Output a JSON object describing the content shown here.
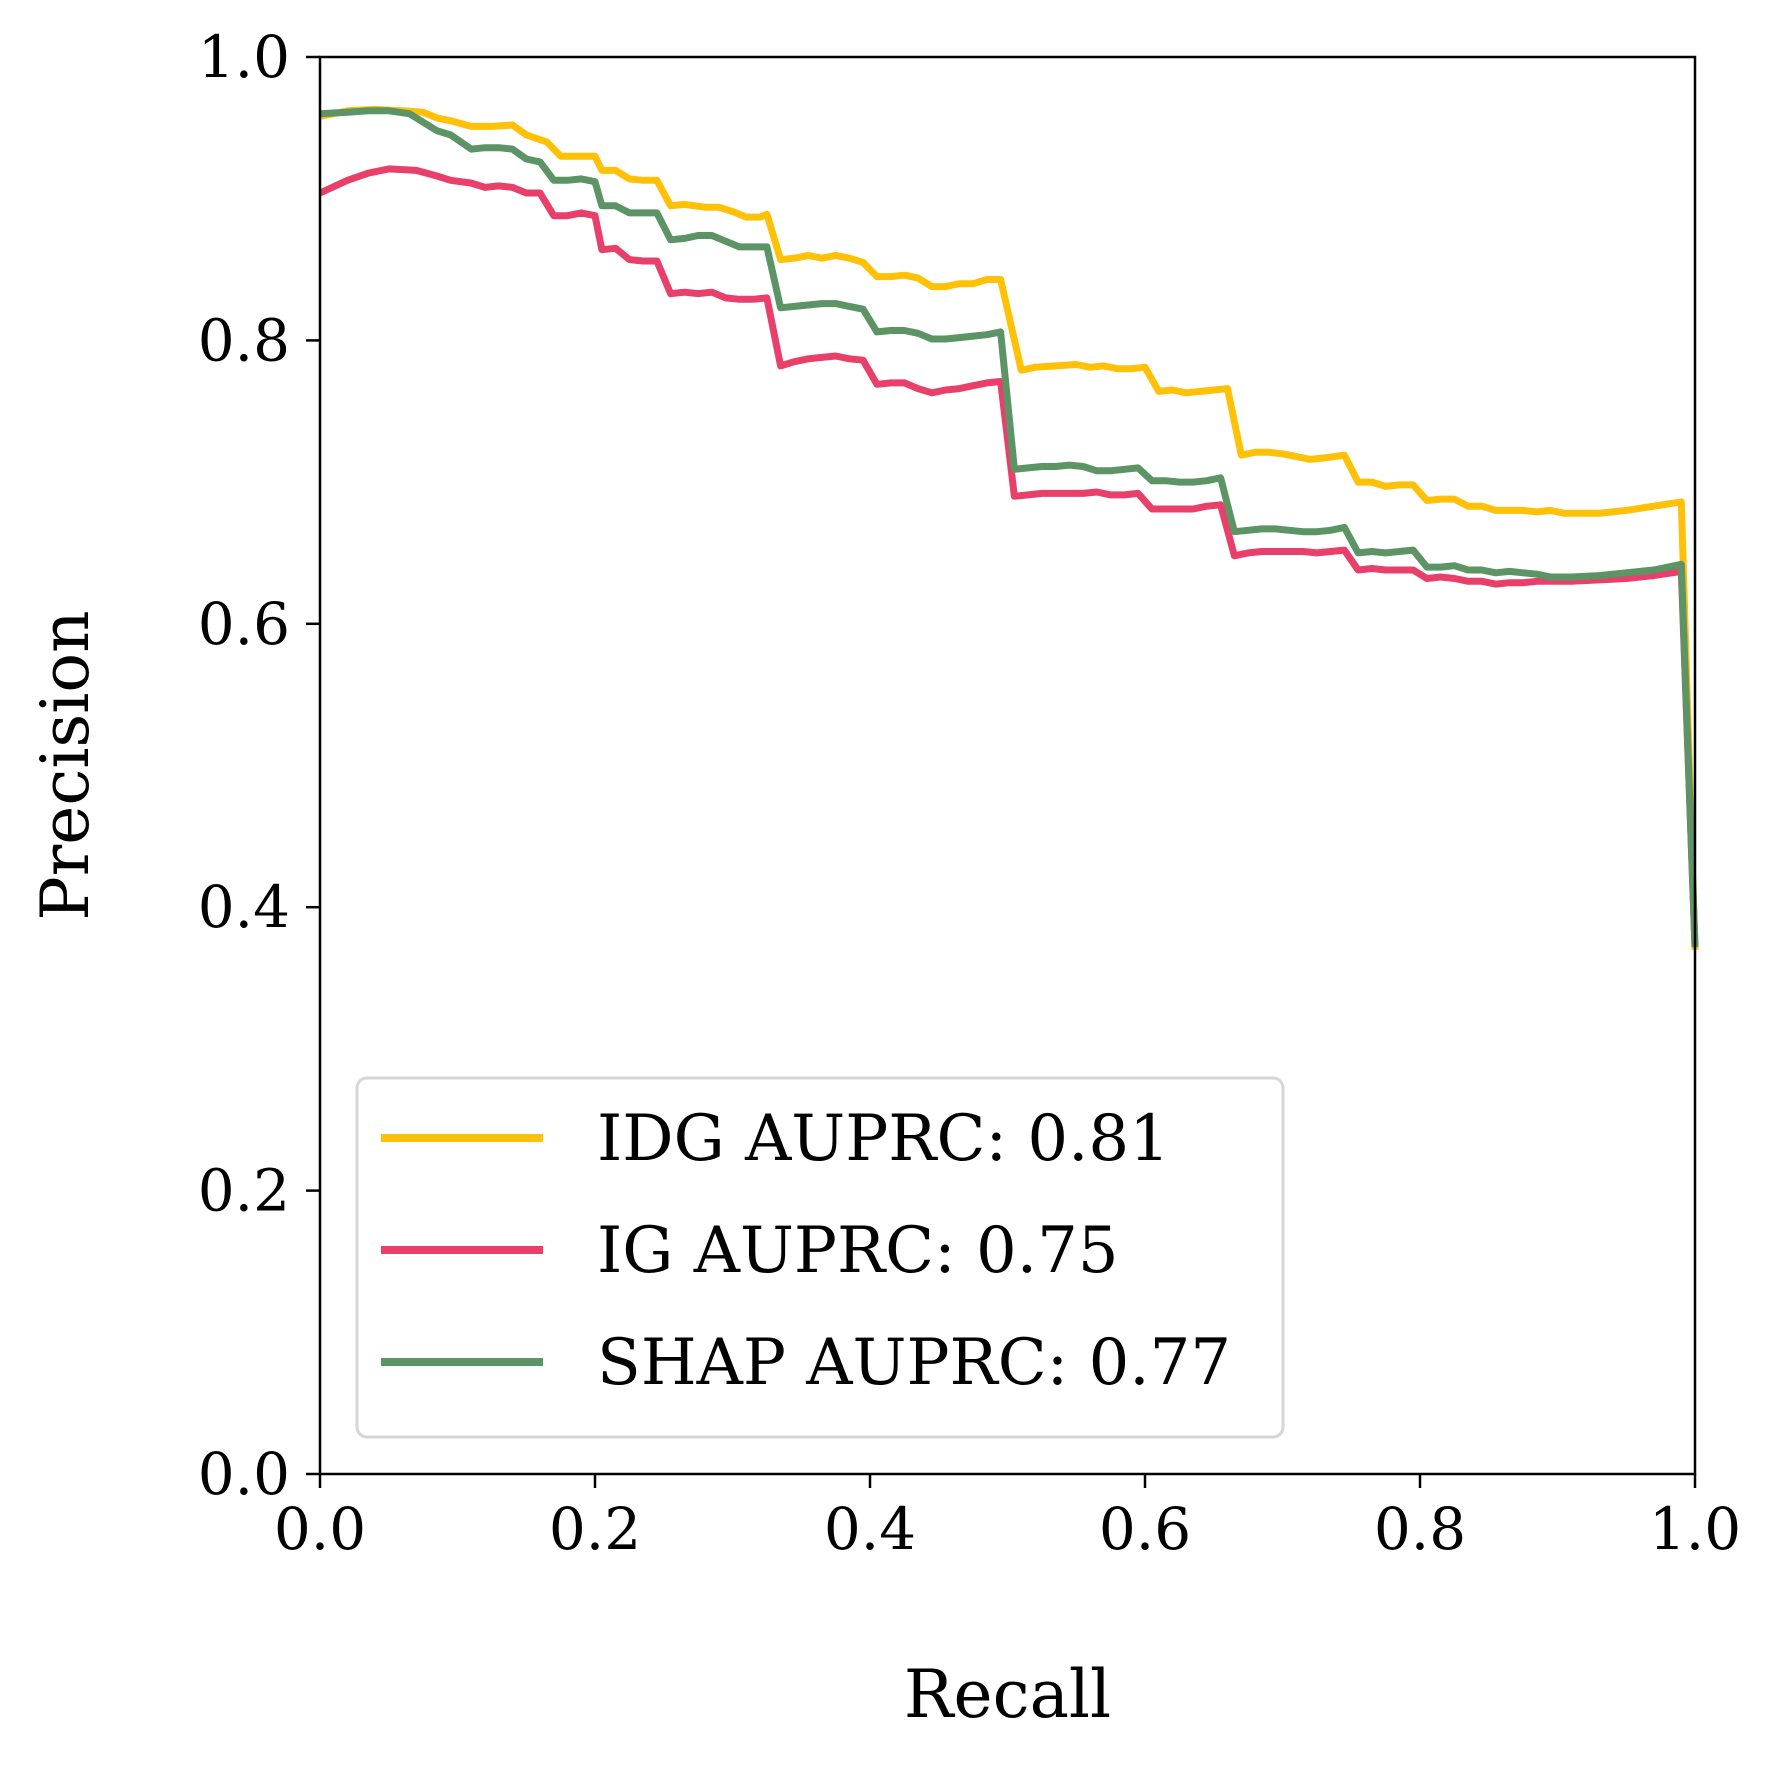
{
  "chart_data": {
    "type": "line",
    "xlabel": "Recall",
    "ylabel": "Precision",
    "xlim": [
      0.0,
      1.0
    ],
    "ylim": [
      0.0,
      1.0
    ],
    "x_ticks": [
      "0.0",
      "0.2",
      "0.4",
      "0.6",
      "0.8",
      "1.0"
    ],
    "y_ticks": [
      "0.0",
      "0.2",
      "0.4",
      "0.6",
      "0.8",
      "1.0"
    ],
    "grid": false,
    "legend_position": "bottom-left",
    "series": [
      {
        "name": "IDG AUPRC: 0.81",
        "color": "#FFC107",
        "points": [
          [
            0.0,
            0.958
          ],
          [
            0.02,
            0.962
          ],
          [
            0.04,
            0.963
          ],
          [
            0.06,
            0.962
          ],
          [
            0.075,
            0.961
          ],
          [
            0.085,
            0.957
          ],
          [
            0.095,
            0.955
          ],
          [
            0.11,
            0.951
          ],
          [
            0.125,
            0.951
          ],
          [
            0.14,
            0.952
          ],
          [
            0.15,
            0.945
          ],
          [
            0.165,
            0.94
          ],
          [
            0.175,
            0.93
          ],
          [
            0.19,
            0.93
          ],
          [
            0.2,
            0.93
          ],
          [
            0.205,
            0.92
          ],
          [
            0.215,
            0.92
          ],
          [
            0.225,
            0.914
          ],
          [
            0.235,
            0.913
          ],
          [
            0.245,
            0.913
          ],
          [
            0.255,
            0.895
          ],
          [
            0.265,
            0.896
          ],
          [
            0.28,
            0.894
          ],
          [
            0.29,
            0.894
          ],
          [
            0.3,
            0.891
          ],
          [
            0.31,
            0.887
          ],
          [
            0.32,
            0.887
          ],
          [
            0.325,
            0.889
          ],
          [
            0.335,
            0.857
          ],
          [
            0.345,
            0.858
          ],
          [
            0.355,
            0.86
          ],
          [
            0.365,
            0.858
          ],
          [
            0.375,
            0.86
          ],
          [
            0.385,
            0.858
          ],
          [
            0.395,
            0.855
          ],
          [
            0.405,
            0.845
          ],
          [
            0.415,
            0.845
          ],
          [
            0.425,
            0.846
          ],
          [
            0.435,
            0.844
          ],
          [
            0.445,
            0.838
          ],
          [
            0.455,
            0.838
          ],
          [
            0.465,
            0.84
          ],
          [
            0.475,
            0.84
          ],
          [
            0.485,
            0.843
          ],
          [
            0.495,
            0.843
          ],
          [
            0.51,
            0.779
          ],
          [
            0.52,
            0.781
          ],
          [
            0.535,
            0.782
          ],
          [
            0.55,
            0.783
          ],
          [
            0.56,
            0.781
          ],
          [
            0.57,
            0.782
          ],
          [
            0.58,
            0.78
          ],
          [
            0.59,
            0.78
          ],
          [
            0.6,
            0.781
          ],
          [
            0.61,
            0.764
          ],
          [
            0.62,
            0.765
          ],
          [
            0.63,
            0.763
          ],
          [
            0.64,
            0.764
          ],
          [
            0.65,
            0.765
          ],
          [
            0.66,
            0.766
          ],
          [
            0.67,
            0.719
          ],
          [
            0.68,
            0.721
          ],
          [
            0.69,
            0.721
          ],
          [
            0.7,
            0.72
          ],
          [
            0.71,
            0.718
          ],
          [
            0.72,
            0.716
          ],
          [
            0.73,
            0.717
          ],
          [
            0.745,
            0.719
          ],
          [
            0.755,
            0.7
          ],
          [
            0.765,
            0.7
          ],
          [
            0.775,
            0.697
          ],
          [
            0.785,
            0.698
          ],
          [
            0.795,
            0.698
          ],
          [
            0.805,
            0.687
          ],
          [
            0.815,
            0.688
          ],
          [
            0.825,
            0.688
          ],
          [
            0.835,
            0.683
          ],
          [
            0.845,
            0.683
          ],
          [
            0.855,
            0.68
          ],
          [
            0.865,
            0.68
          ],
          [
            0.875,
            0.68
          ],
          [
            0.885,
            0.679
          ],
          [
            0.895,
            0.68
          ],
          [
            0.905,
            0.678
          ],
          [
            0.915,
            0.678
          ],
          [
            0.93,
            0.678
          ],
          [
            0.95,
            0.68
          ],
          [
            0.97,
            0.683
          ],
          [
            0.99,
            0.686
          ],
          [
            1.0,
            0.37
          ]
        ]
      },
      {
        "name": "IG AUPRC: 0.75",
        "color": "#E8406A",
        "points": [
          [
            0.0,
            0.904
          ],
          [
            0.02,
            0.913
          ],
          [
            0.035,
            0.918
          ],
          [
            0.05,
            0.921
          ],
          [
            0.07,
            0.92
          ],
          [
            0.085,
            0.916
          ],
          [
            0.095,
            0.913
          ],
          [
            0.11,
            0.911
          ],
          [
            0.12,
            0.908
          ],
          [
            0.13,
            0.909
          ],
          [
            0.14,
            0.908
          ],
          [
            0.15,
            0.904
          ],
          [
            0.16,
            0.904
          ],
          [
            0.17,
            0.888
          ],
          [
            0.18,
            0.888
          ],
          [
            0.19,
            0.89
          ],
          [
            0.2,
            0.888
          ],
          [
            0.205,
            0.864
          ],
          [
            0.215,
            0.865
          ],
          [
            0.225,
            0.857
          ],
          [
            0.235,
            0.856
          ],
          [
            0.245,
            0.856
          ],
          [
            0.255,
            0.833
          ],
          [
            0.265,
            0.834
          ],
          [
            0.275,
            0.833
          ],
          [
            0.285,
            0.834
          ],
          [
            0.295,
            0.83
          ],
          [
            0.305,
            0.829
          ],
          [
            0.315,
            0.829
          ],
          [
            0.325,
            0.83
          ],
          [
            0.335,
            0.782
          ],
          [
            0.345,
            0.785
          ],
          [
            0.355,
            0.787
          ],
          [
            0.365,
            0.788
          ],
          [
            0.375,
            0.789
          ],
          [
            0.385,
            0.787
          ],
          [
            0.395,
            0.786
          ],
          [
            0.405,
            0.769
          ],
          [
            0.415,
            0.77
          ],
          [
            0.425,
            0.77
          ],
          [
            0.435,
            0.766
          ],
          [
            0.445,
            0.763
          ],
          [
            0.455,
            0.765
          ],
          [
            0.465,
            0.766
          ],
          [
            0.475,
            0.768
          ],
          [
            0.485,
            0.77
          ],
          [
            0.495,
            0.771
          ],
          [
            0.505,
            0.69
          ],
          [
            0.515,
            0.691
          ],
          [
            0.525,
            0.692
          ],
          [
            0.535,
            0.692
          ],
          [
            0.545,
            0.692
          ],
          [
            0.555,
            0.692
          ],
          [
            0.565,
            0.693
          ],
          [
            0.575,
            0.691
          ],
          [
            0.585,
            0.691
          ],
          [
            0.595,
            0.692
          ],
          [
            0.605,
            0.681
          ],
          [
            0.615,
            0.681
          ],
          [
            0.625,
            0.681
          ],
          [
            0.635,
            0.681
          ],
          [
            0.645,
            0.683
          ],
          [
            0.655,
            0.684
          ],
          [
            0.665,
            0.648
          ],
          [
            0.675,
            0.65
          ],
          [
            0.685,
            0.651
          ],
          [
            0.695,
            0.651
          ],
          [
            0.705,
            0.651
          ],
          [
            0.715,
            0.651
          ],
          [
            0.725,
            0.65
          ],
          [
            0.735,
            0.651
          ],
          [
            0.745,
            0.652
          ],
          [
            0.755,
            0.638
          ],
          [
            0.765,
            0.639
          ],
          [
            0.775,
            0.638
          ],
          [
            0.785,
            0.638
          ],
          [
            0.795,
            0.638
          ],
          [
            0.805,
            0.632
          ],
          [
            0.815,
            0.633
          ],
          [
            0.825,
            0.632
          ],
          [
            0.835,
            0.63
          ],
          [
            0.845,
            0.63
          ],
          [
            0.855,
            0.628
          ],
          [
            0.865,
            0.629
          ],
          [
            0.875,
            0.629
          ],
          [
            0.885,
            0.63
          ],
          [
            0.895,
            0.63
          ],
          [
            0.91,
            0.63
          ],
          [
            0.93,
            0.631
          ],
          [
            0.95,
            0.632
          ],
          [
            0.97,
            0.634
          ],
          [
            0.99,
            0.637
          ],
          [
            1.0,
            0.372
          ]
        ]
      },
      {
        "name": "SHAP AUPRC: 0.77",
        "color": "#5C9465",
        "points": [
          [
            0.0,
            0.96
          ],
          [
            0.02,
            0.961
          ],
          [
            0.035,
            0.962
          ],
          [
            0.05,
            0.962
          ],
          [
            0.065,
            0.96
          ],
          [
            0.075,
            0.954
          ],
          [
            0.085,
            0.948
          ],
          [
            0.095,
            0.945
          ],
          [
            0.11,
            0.935
          ],
          [
            0.12,
            0.936
          ],
          [
            0.13,
            0.936
          ],
          [
            0.14,
            0.935
          ],
          [
            0.15,
            0.928
          ],
          [
            0.16,
            0.926
          ],
          [
            0.17,
            0.913
          ],
          [
            0.18,
            0.913
          ],
          [
            0.19,
            0.914
          ],
          [
            0.2,
            0.912
          ],
          [
            0.205,
            0.895
          ],
          [
            0.215,
            0.895
          ],
          [
            0.225,
            0.89
          ],
          [
            0.235,
            0.89
          ],
          [
            0.245,
            0.89
          ],
          [
            0.255,
            0.871
          ],
          [
            0.265,
            0.872
          ],
          [
            0.275,
            0.874
          ],
          [
            0.285,
            0.874
          ],
          [
            0.295,
            0.87
          ],
          [
            0.305,
            0.866
          ],
          [
            0.315,
            0.866
          ],
          [
            0.325,
            0.866
          ],
          [
            0.335,
            0.823
          ],
          [
            0.345,
            0.824
          ],
          [
            0.355,
            0.825
          ],
          [
            0.365,
            0.826
          ],
          [
            0.375,
            0.826
          ],
          [
            0.385,
            0.824
          ],
          [
            0.395,
            0.822
          ],
          [
            0.405,
            0.806
          ],
          [
            0.415,
            0.807
          ],
          [
            0.425,
            0.807
          ],
          [
            0.435,
            0.805
          ],
          [
            0.445,
            0.801
          ],
          [
            0.455,
            0.801
          ],
          [
            0.465,
            0.802
          ],
          [
            0.475,
            0.803
          ],
          [
            0.485,
            0.804
          ],
          [
            0.495,
            0.806
          ],
          [
            0.505,
            0.709
          ],
          [
            0.515,
            0.71
          ],
          [
            0.525,
            0.711
          ],
          [
            0.535,
            0.711
          ],
          [
            0.545,
            0.712
          ],
          [
            0.555,
            0.711
          ],
          [
            0.565,
            0.708
          ],
          [
            0.575,
            0.708
          ],
          [
            0.585,
            0.709
          ],
          [
            0.595,
            0.71
          ],
          [
            0.605,
            0.701
          ],
          [
            0.615,
            0.701
          ],
          [
            0.625,
            0.7
          ],
          [
            0.635,
            0.7
          ],
          [
            0.645,
            0.701
          ],
          [
            0.655,
            0.703
          ],
          [
            0.665,
            0.665
          ],
          [
            0.675,
            0.666
          ],
          [
            0.685,
            0.667
          ],
          [
            0.695,
            0.667
          ],
          [
            0.705,
            0.666
          ],
          [
            0.715,
            0.665
          ],
          [
            0.725,
            0.665
          ],
          [
            0.735,
            0.666
          ],
          [
            0.745,
            0.668
          ],
          [
            0.755,
            0.65
          ],
          [
            0.765,
            0.651
          ],
          [
            0.775,
            0.65
          ],
          [
            0.785,
            0.651
          ],
          [
            0.795,
            0.652
          ],
          [
            0.805,
            0.64
          ],
          [
            0.815,
            0.64
          ],
          [
            0.825,
            0.641
          ],
          [
            0.835,
            0.638
          ],
          [
            0.845,
            0.638
          ],
          [
            0.855,
            0.636
          ],
          [
            0.865,
            0.637
          ],
          [
            0.875,
            0.636
          ],
          [
            0.885,
            0.635
          ],
          [
            0.895,
            0.633
          ],
          [
            0.91,
            0.633
          ],
          [
            0.93,
            0.634
          ],
          [
            0.95,
            0.636
          ],
          [
            0.97,
            0.638
          ],
          [
            0.99,
            0.642
          ],
          [
            1.0,
            0.372
          ]
        ]
      }
    ]
  }
}
